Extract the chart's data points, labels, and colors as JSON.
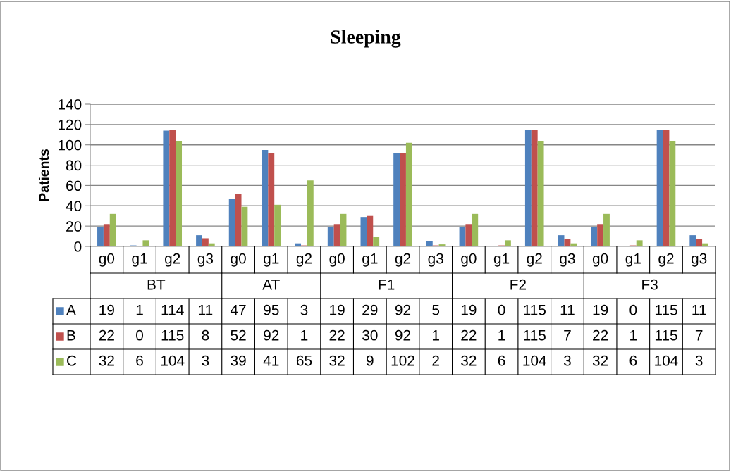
{
  "chart_data": {
    "type": "bar",
    "title": "Sleeping",
    "ylabel": "Patients",
    "categories": [
      "g0",
      "g1",
      "g2",
      "g3",
      "g0",
      "g1",
      "g2",
      "g0",
      "g1",
      "g2",
      "g3",
      "g0",
      "g1",
      "g2",
      "g3",
      "g0",
      "g1",
      "g2",
      "g3"
    ],
    "annotations": [
      "BT",
      "AT",
      "F1",
      "F2",
      "F3"
    ],
    "series": [
      {
        "name": "A",
        "color": "#4f81bd",
        "values": [
          19,
          1,
          114,
          11,
          47,
          95,
          3,
          19,
          29,
          92,
          5,
          19,
          0,
          115,
          11,
          19,
          0,
          115,
          11
        ]
      },
      {
        "name": "B",
        "color": "#c0504d",
        "values": [
          22,
          0,
          115,
          8,
          52,
          92,
          1,
          22,
          30,
          92,
          1,
          22,
          1,
          115,
          7,
          22,
          1,
          115,
          7
        ]
      },
      {
        "name": "C",
        "color": "#9bbb59",
        "values": [
          32,
          6,
          104,
          3,
          39,
          41,
          65,
          32,
          9,
          102,
          2,
          32,
          6,
          104,
          3,
          32,
          6,
          104,
          3
        ]
      }
    ],
    "ylim": [
      0,
      140
    ],
    "yticks": [
      0,
      20,
      40,
      60,
      80,
      100,
      120,
      140
    ],
    "grid": "y",
    "data_labels": true,
    "legend": "bottom"
  }
}
